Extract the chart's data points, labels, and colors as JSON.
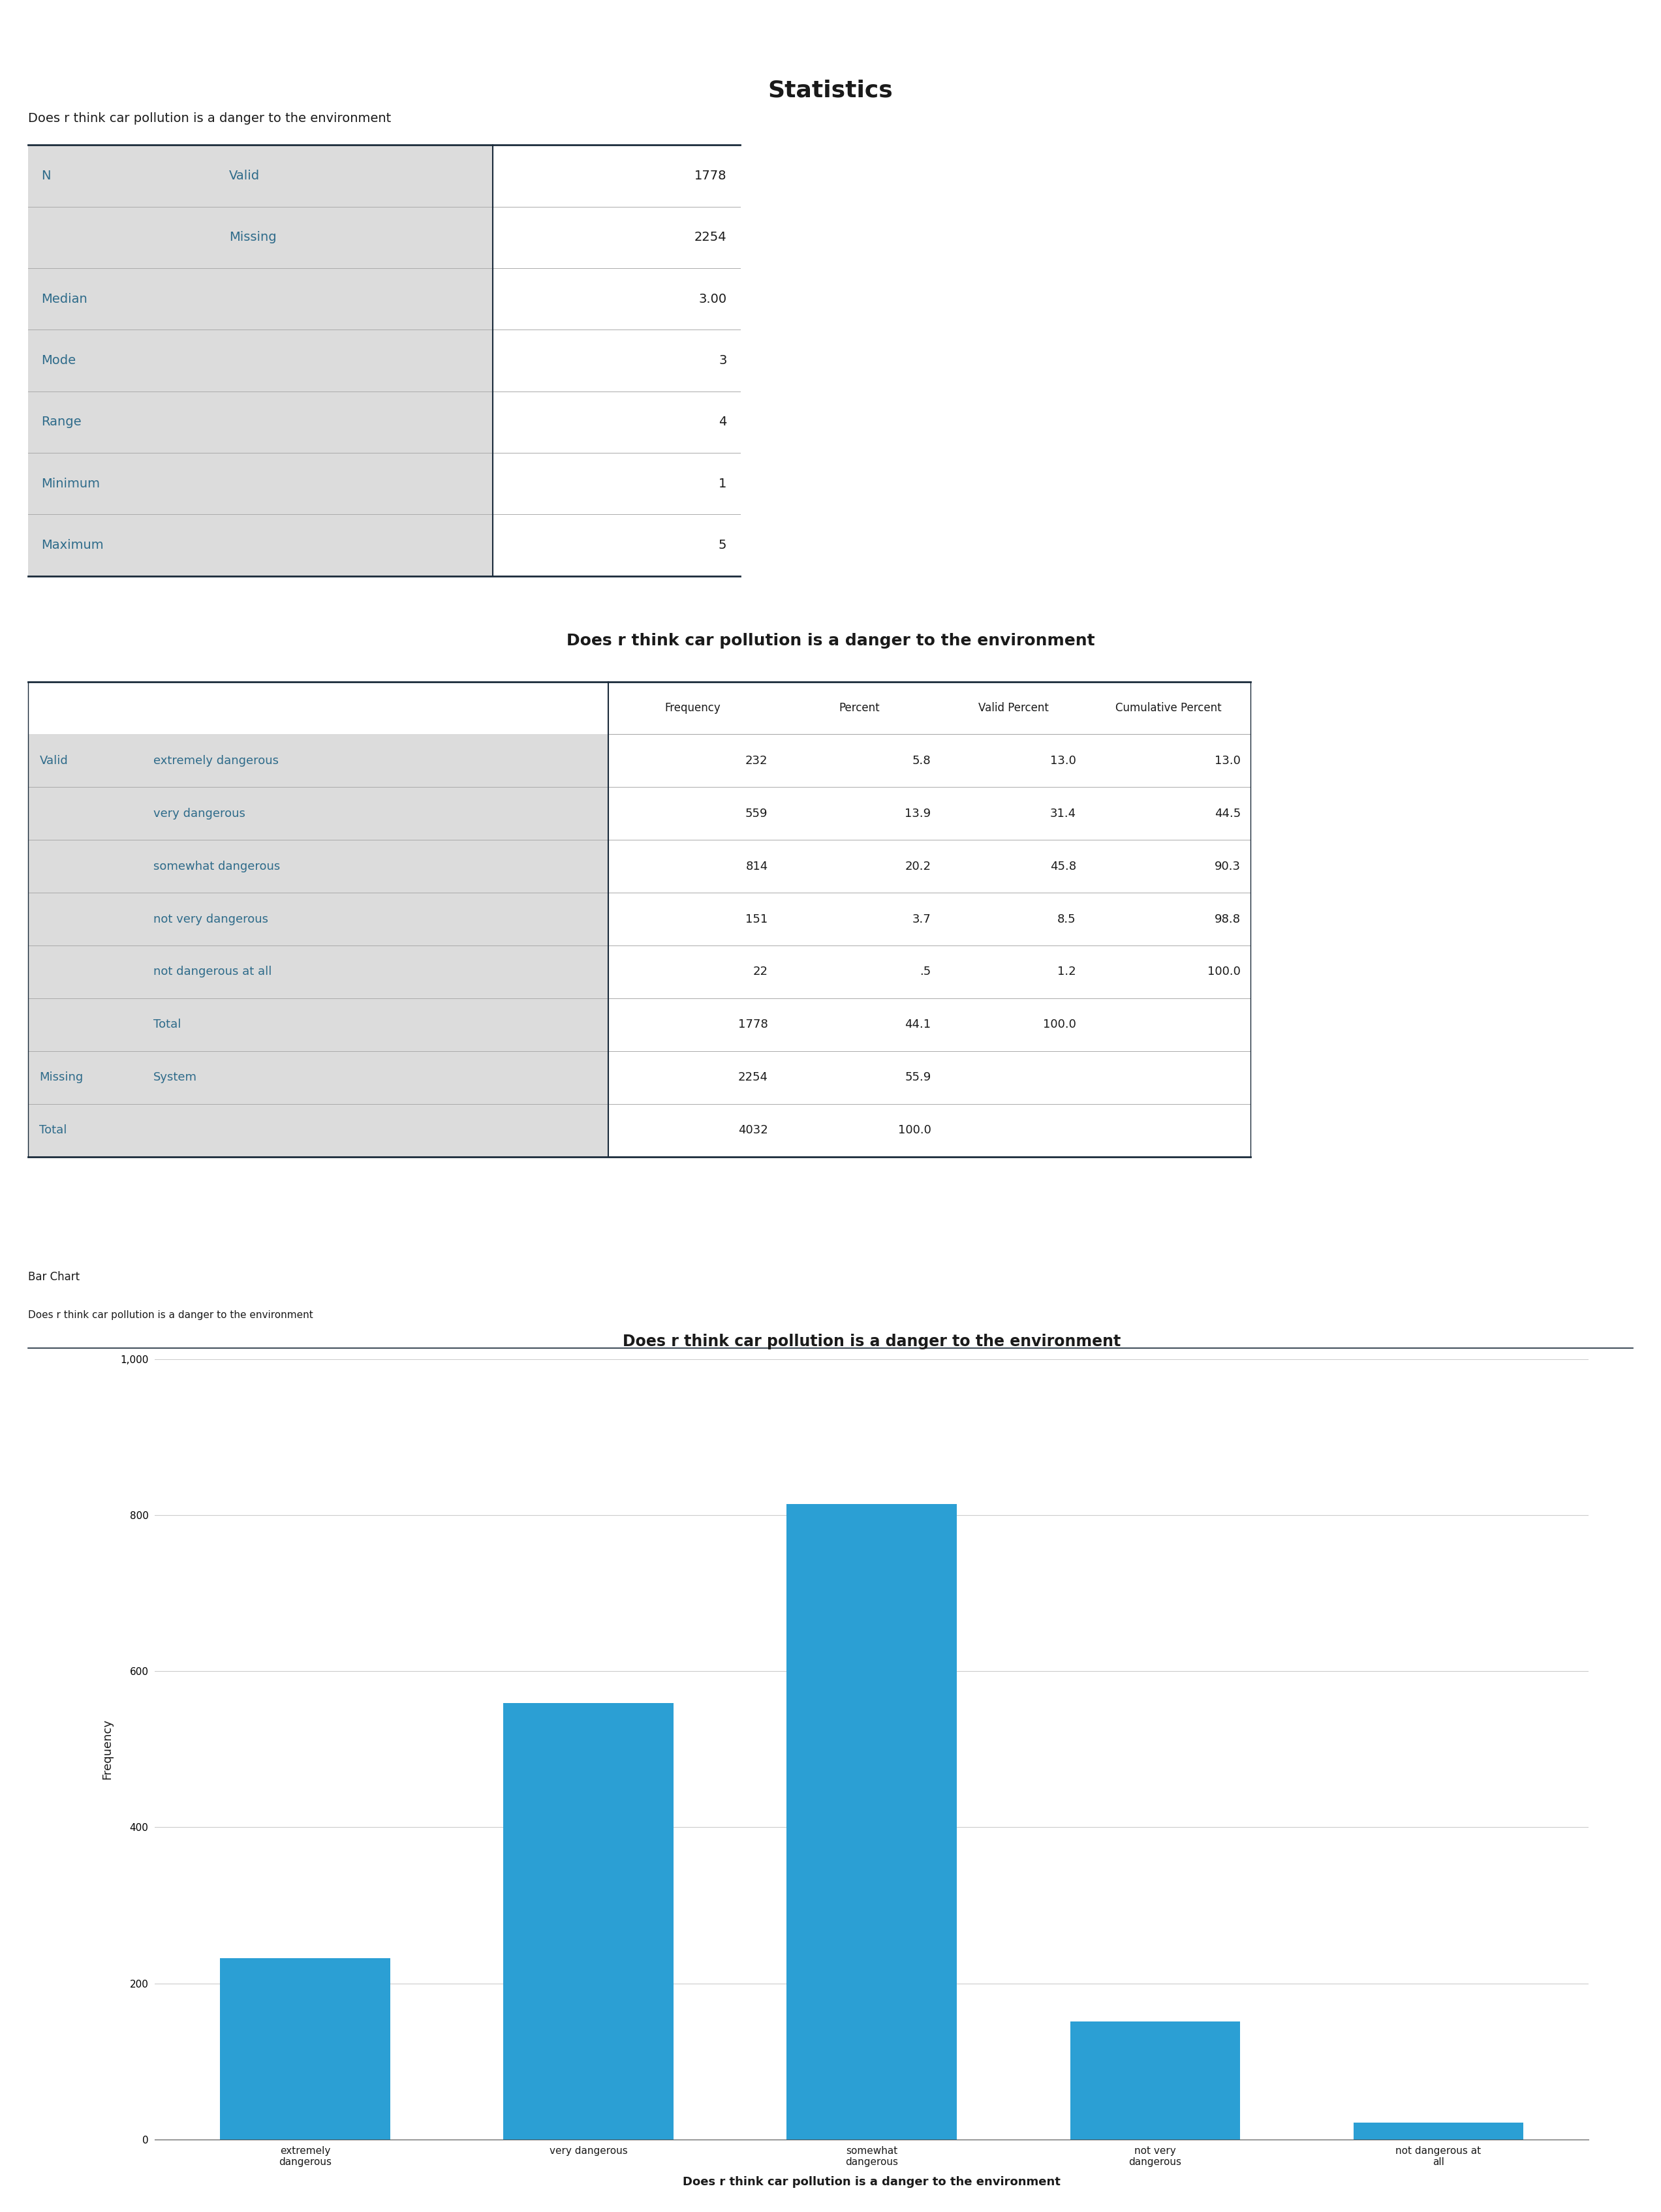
{
  "title_stats": "Statistics",
  "subtitle_stats": "Does r think car pollution is a danger to the environment",
  "stats_rows": [
    [
      "N",
      "Valid",
      "1778"
    ],
    [
      "",
      "Missing",
      "2254"
    ],
    [
      "Median",
      "",
      "3.00"
    ],
    [
      "Mode",
      "",
      "3"
    ],
    [
      "Range",
      "",
      "4"
    ],
    [
      "Minimum",
      "",
      "1"
    ],
    [
      "Maximum",
      "",
      "5"
    ]
  ],
  "freq_title": "Does r think car pollution is a danger to the environment",
  "freq_rows": [
    [
      "Valid",
      "extremely dangerous",
      "232",
      "5.8",
      "13.0",
      "13.0"
    ],
    [
      "",
      "very dangerous",
      "559",
      "13.9",
      "31.4",
      "44.5"
    ],
    [
      "",
      "somewhat dangerous",
      "814",
      "20.2",
      "45.8",
      "90.3"
    ],
    [
      "",
      "not very dangerous",
      "151",
      "3.7",
      "8.5",
      "98.8"
    ],
    [
      "",
      "not dangerous at all",
      "22",
      ".5",
      "1.2",
      "100.0"
    ],
    [
      "",
      "Total",
      "1778",
      "44.1",
      "100.0",
      ""
    ],
    [
      "Missing",
      "System",
      "2254",
      "55.9",
      "",
      ""
    ],
    [
      "Total",
      "",
      "4032",
      "100.0",
      "",
      ""
    ]
  ],
  "bar_title": "Does r think car pollution is a danger to the environment",
  "bar_xlabel": "Does r think car pollution is a danger to the environment",
  "bar_ylabel": "Frequency",
  "bar_categories": [
    "extremely\ndangerous",
    "very dangerous",
    "somewhat\ndangerous",
    "not very\ndangerous",
    "not dangerous at\nall"
  ],
  "bar_values": [
    232,
    559,
    814,
    151,
    22
  ],
  "bar_color": "#2b9fd4",
  "bar_chart_label": "Bar Chart",
  "bar_chart_subtitle": "Does r think car pollution is a danger to the environment",
  "bg_color": "#ffffff",
  "table_bg_label": "#dcdcdc",
  "table_bg_value": "#ffffff",
  "text_teal": "#2e6b8a",
  "text_dark": "#1a1a1a",
  "line_dark": "#1a2a3a",
  "line_gray": "#aaaaaa",
  "ylim": [
    0,
    1000
  ],
  "yticks": [
    0,
    200,
    400,
    600,
    800,
    1000
  ]
}
